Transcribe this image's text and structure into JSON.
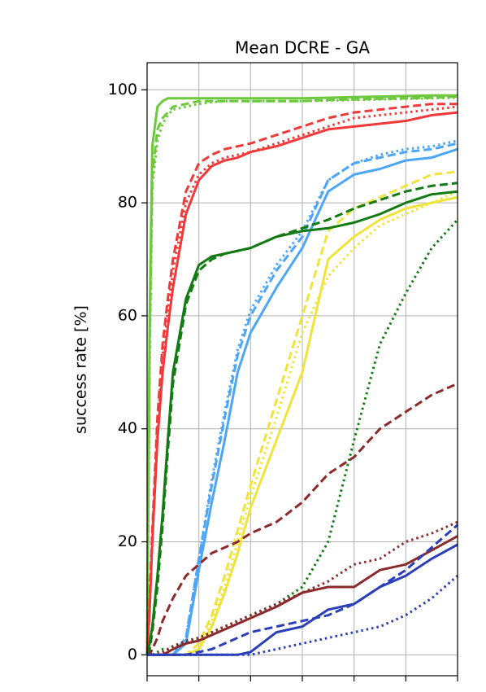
{
  "chart_data": {
    "type": "line",
    "title": "Mean DCRE - GA",
    "y_label": "success rate [%]",
    "x": [
      0,
      0.05,
      0.1,
      0.2,
      0.3,
      0.4,
      0.5,
      0.75,
      1,
      1.25,
      1.5,
      1.75,
      2,
      2.5,
      3,
      3.5,
      4,
      4.5,
      5,
      5.5,
      6
    ],
    "xlim": [
      0,
      6
    ],
    "xticks": [
      0,
      1,
      2,
      3,
      4,
      5,
      6
    ],
    "ylim": [
      -3.7,
      104.8
    ],
    "yticks": [
      0,
      20,
      40,
      60,
      80,
      100
    ],
    "grid": true,
    "series": [
      {
        "color": "#6cc93b",
        "dash": "solid",
        "values": [
          0,
          60,
          90,
          97,
          98,
          98.5,
          98.5,
          98.5,
          98.5,
          98.5,
          98.5,
          98.5,
          98.5,
          98.5,
          98.5,
          98.6,
          98.7,
          98.8,
          98.9,
          99,
          99
        ]
      },
      {
        "color": "#6cc93b",
        "dash": "dashed",
        "values": [
          0,
          55,
          85,
          93,
          95,
          96,
          97,
          97.5,
          98,
          98,
          98,
          98,
          98,
          98,
          98,
          98.2,
          98.3,
          98.4,
          98.5,
          98.6,
          98.8
        ]
      },
      {
        "color": "#6cc93b",
        "dash": "dotted",
        "values": [
          0,
          52,
          83,
          91,
          94,
          95.5,
          96.5,
          97,
          97.5,
          97.8,
          98,
          98,
          98,
          98,
          98,
          98.1,
          98.2,
          98.3,
          98.4,
          98.5,
          98.6
        ]
      },
      {
        "color": "#f03a3a",
        "dash": "solid",
        "values": [
          0,
          8,
          20,
          38,
          50,
          58,
          65,
          78,
          84,
          86.5,
          87.5,
          88,
          89,
          90,
          91.5,
          93,
          93.5,
          94,
          94.5,
          95.5,
          96
        ]
      },
      {
        "color": "#f03a3a",
        "dash": "dashed",
        "values": [
          0,
          10,
          22,
          42,
          55,
          63,
          70,
          82,
          87,
          88.5,
          89.5,
          90,
          90.5,
          92,
          93.5,
          95,
          96,
          96.5,
          97,
          97.5,
          97.5
        ]
      },
      {
        "color": "#f03a3a",
        "dash": "dotted",
        "values": [
          0,
          9,
          21,
          40,
          53,
          61,
          68,
          80,
          85,
          87,
          88,
          88.5,
          89,
          90.5,
          92,
          93.5,
          95,
          95.5,
          96,
          96.5,
          97
        ]
      },
      {
        "color": "#4da6f5",
        "dash": "solid",
        "values": [
          0,
          0,
          0,
          0,
          0,
          0,
          0,
          2,
          15,
          27,
          38,
          50,
          57,
          65,
          72,
          82,
          85,
          86,
          87.5,
          88,
          89.5
        ]
      },
      {
        "color": "#4da6f5",
        "dash": "dashed",
        "values": [
          0,
          0,
          0,
          0,
          0,
          0,
          0,
          3,
          17,
          30,
          42,
          53,
          60,
          68,
          74,
          84,
          87,
          88,
          89,
          89.5,
          90.5
        ]
      },
      {
        "color": "#4da6f5",
        "dash": "dotted",
        "values": [
          0,
          0,
          0,
          0,
          0,
          0,
          0,
          3,
          17,
          31,
          43,
          54,
          61,
          69,
          75,
          84,
          87,
          88.5,
          89.5,
          90,
          91
        ]
      },
      {
        "color": "#f0e43a",
        "dash": "solid",
        "values": [
          0,
          0,
          0,
          0,
          0,
          0,
          0,
          0,
          1,
          5,
          11,
          18,
          26,
          38,
          50,
          70,
          74,
          77,
          79,
          80,
          81
        ]
      },
      {
        "color": "#f0e43a",
        "dash": "dashed",
        "values": [
          0,
          0,
          0,
          0,
          0,
          0,
          0,
          0,
          2,
          7,
          14,
          22,
          30,
          45,
          60,
          75,
          79,
          81,
          83,
          85,
          85.5
        ]
      },
      {
        "color": "#f0e43a",
        "dash": "dotted",
        "values": [
          0,
          0,
          0,
          0,
          0,
          0,
          0,
          0,
          1,
          6,
          12,
          20,
          28,
          42,
          57,
          67,
          72,
          76,
          78,
          80,
          82
        ]
      },
      {
        "color": "#147a14",
        "dash": "solid",
        "values": [
          0,
          2,
          5,
          14,
          25,
          38,
          50,
          63,
          69,
          70.5,
          71,
          71.5,
          72,
          74,
          75,
          75.5,
          76.5,
          78,
          80,
          81.5,
          82
        ]
      },
      {
        "color": "#147a14",
        "dash": "dashed",
        "values": [
          0,
          1,
          4,
          12,
          23,
          36,
          48,
          62,
          68,
          70,
          71,
          71.5,
          72,
          74,
          75.5,
          77,
          79,
          80.5,
          82,
          83,
          83.5
        ]
      },
      {
        "color": "#147a14",
        "dash": "dotted",
        "values": [
          0,
          0,
          0,
          0.5,
          1,
          1,
          1.5,
          2,
          3,
          4,
          5,
          6,
          7,
          9,
          12,
          20,
          38,
          55,
          64,
          72,
          77
        ]
      },
      {
        "color": "#8b2a2a",
        "dash": "solid",
        "values": [
          0,
          0,
          0,
          0,
          0,
          0.5,
          1,
          2,
          2.5,
          3.5,
          4.5,
          5.5,
          6.5,
          8.5,
          11,
          12,
          12,
          15,
          16,
          18.5,
          21
        ]
      },
      {
        "color": "#8b2a2a",
        "dash": "dashed",
        "values": [
          0,
          0,
          1,
          3,
          6,
          8,
          10,
          14,
          16,
          18,
          19,
          20,
          21.5,
          23.5,
          27,
          32,
          35,
          40,
          43,
          46,
          48
        ]
      },
      {
        "color": "#8b2a2a",
        "dash": "dotted",
        "values": [
          0,
          0,
          0,
          0,
          0.5,
          1,
          1.5,
          2.5,
          3,
          4,
          5,
          6,
          7,
          9,
          11,
          13,
          16,
          17,
          20,
          21.5,
          23.5
        ]
      },
      {
        "color": "#2a3fb8",
        "dash": "solid",
        "values": [
          0,
          0,
          0,
          0,
          0,
          0,
          0,
          0,
          0,
          0,
          0,
          0,
          0.5,
          4,
          5,
          8,
          9,
          12,
          14,
          17,
          19.5
        ]
      },
      {
        "color": "#2a3fb8",
        "dash": "dashed",
        "values": [
          0,
          0,
          0,
          0,
          0,
          0,
          0,
          0,
          0.5,
          1,
          2,
          3,
          4,
          5,
          6,
          7,
          9,
          12,
          15,
          19,
          23
        ]
      },
      {
        "color": "#2a3fb8",
        "dash": "dotted",
        "values": [
          0,
          0,
          0,
          0,
          0,
          0,
          0,
          0,
          0,
          0,
          0,
          0,
          0,
          1,
          2,
          3,
          4,
          5,
          7,
          10,
          14
        ]
      }
    ]
  }
}
